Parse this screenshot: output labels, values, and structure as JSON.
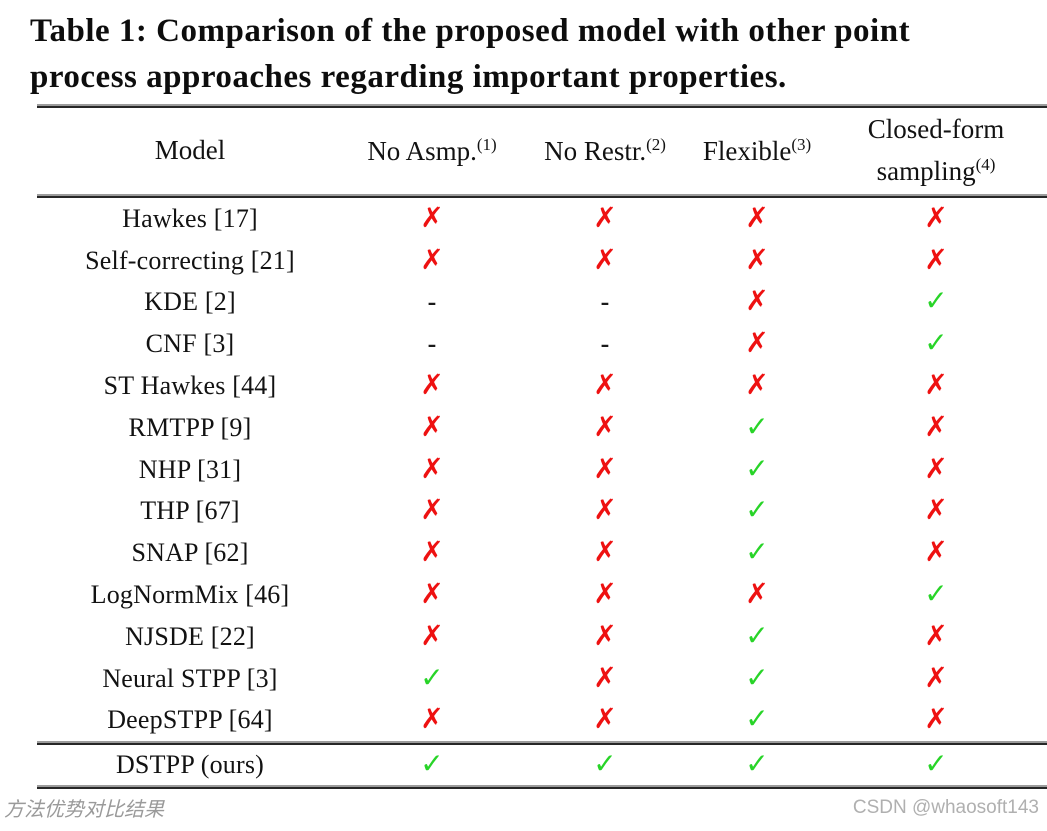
{
  "title": {
    "line1": "Table 1: Comparison of the proposed model with other point",
    "line2": "process approaches regarding important properties."
  },
  "table": {
    "columns": [
      {
        "label": "Model",
        "sup": ""
      },
      {
        "label": "No Asmp.",
        "sup": "(1)"
      },
      {
        "label": "No Restr.",
        "sup": "(2)"
      },
      {
        "label": "Flexible",
        "sup": "(3)"
      },
      {
        "line1": "Closed-form",
        "line2": "sampling",
        "sup": "(4)"
      }
    ],
    "rows": [
      {
        "model": "Hawkes [17]",
        "marks": [
          "x",
          "x",
          "x",
          "x"
        ]
      },
      {
        "model": "Self-correcting [21]",
        "marks": [
          "x",
          "x",
          "x",
          "x"
        ]
      },
      {
        "model": "KDE [2]",
        "marks": [
          "dash",
          "dash",
          "x",
          "check"
        ]
      },
      {
        "model": "CNF [3]",
        "marks": [
          "dash",
          "dash",
          "x",
          "check"
        ]
      },
      {
        "model": "ST Hawkes [44]",
        "marks": [
          "x",
          "x",
          "x",
          "x"
        ]
      },
      {
        "model": "RMTPP [9]",
        "marks": [
          "x",
          "x",
          "check",
          "x"
        ]
      },
      {
        "model": "NHP [31]",
        "marks": [
          "x",
          "x",
          "check",
          "x"
        ]
      },
      {
        "model": "THP [67]",
        "marks": [
          "x",
          "x",
          "check",
          "x"
        ]
      },
      {
        "model": "SNAP [62]",
        "marks": [
          "x",
          "x",
          "check",
          "x"
        ]
      },
      {
        "model": "LogNormMix [46]",
        "marks": [
          "x",
          "x",
          "x",
          "check"
        ]
      },
      {
        "model": "NJSDE [22]",
        "marks": [
          "x",
          "x",
          "check",
          "x"
        ]
      },
      {
        "model": "Neural STPP [3]",
        "marks": [
          "check",
          "x",
          "check",
          "x"
        ]
      },
      {
        "model": "DeepSTPP [64]",
        "marks": [
          "x",
          "x",
          "check",
          "x"
        ]
      }
    ],
    "ours_row": {
      "model": "DSTPP (ours)",
      "marks": [
        "check",
        "check",
        "check",
        "check"
      ]
    }
  },
  "legend": {
    "x": {
      "glyph": "✗",
      "color": "#ee1111"
    },
    "check": {
      "glyph": "✓",
      "color": "#28d428"
    },
    "dash": {
      "glyph": "-",
      "color": "#1a1a1a"
    }
  },
  "footer": {
    "left": "方法优势对比结果",
    "right": "CSDN @whaosoft143"
  }
}
